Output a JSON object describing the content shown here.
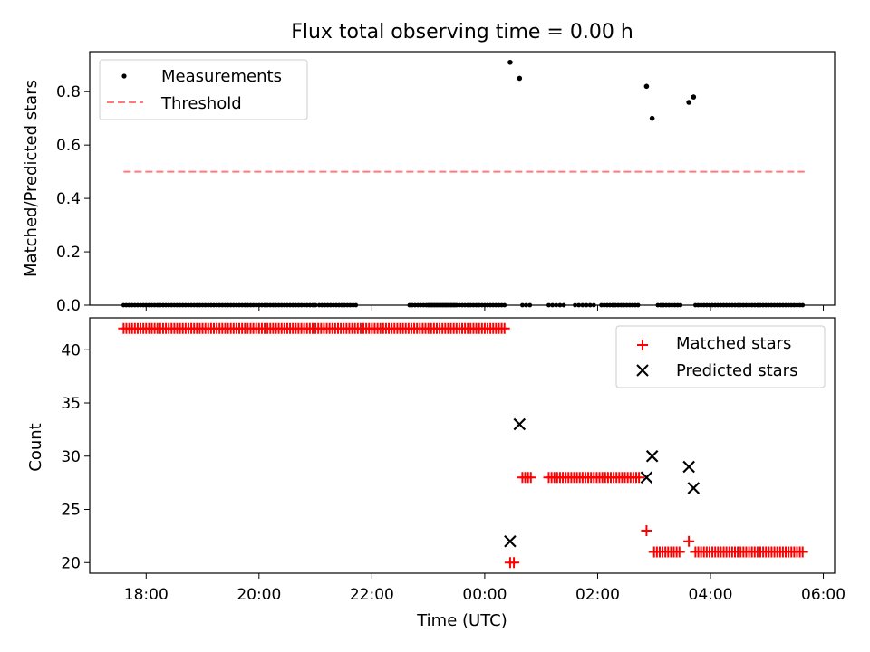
{
  "chart_data": [
    {
      "type": "scatter",
      "title": "Flux total observing time = 0.00 h",
      "ylabel": "Matched/Predicted stars",
      "xlim": [
        "17:00",
        "06:12"
      ],
      "ylim": [
        0,
        0.95
      ],
      "yticks": [
        "0.0",
        "0.2",
        "0.4",
        "0.6",
        "0.8"
      ],
      "grid": false,
      "legend_placement": "upper-left",
      "threshold": {
        "value": 0.5,
        "x_start": "17:36",
        "x_end": "05:40",
        "color": "#ff7a7a"
      },
      "legend": [
        {
          "label": "Measurements",
          "marker": "dot",
          "color": "#000000"
        },
        {
          "label": "Threshold",
          "marker": "dashed-line",
          "color": "#ff7a7a"
        }
      ],
      "series": [
        {
          "name": "Measurements",
          "color": "#000000",
          "zero_segments": [
            {
              "start": "17:36",
              "end": "21:00",
              "step_min": 3
            },
            {
              "start": "21:04",
              "end": "21:44",
              "step_min": 3
            },
            {
              "start": "22:40",
              "end": "23:30",
              "step_min": 3
            },
            {
              "start": "23:00",
              "end": "00:22",
              "step_min": 3
            },
            {
              "start": "00:40",
              "end": "00:50",
              "step_min": 4
            },
            {
              "start": "01:08",
              "end": "01:24",
              "step_min": 4
            },
            {
              "start": "01:36",
              "end": "01:56",
              "step_min": 4
            },
            {
              "start": "02:04",
              "end": "02:44",
              "step_min": 3
            },
            {
              "start": "03:04",
              "end": "03:28",
              "step_min": 3
            },
            {
              "start": "03:44",
              "end": "05:40",
              "step_min": 3
            }
          ],
          "points": [
            {
              "x": "00:27",
              "y": 0.91
            },
            {
              "x": "00:37",
              "y": 0.85
            },
            {
              "x": "02:52",
              "y": 0.82
            },
            {
              "x": "02:58",
              "y": 0.7
            },
            {
              "x": "03:37",
              "y": 0.76
            },
            {
              "x": "03:42",
              "y": 0.78
            }
          ]
        }
      ]
    },
    {
      "type": "scatter",
      "xlabel": "Time (UTC)",
      "ylabel": "Count",
      "xlim": [
        "17:00",
        "06:12"
      ],
      "ylim": [
        19,
        43
      ],
      "xticks": [
        "18:00",
        "20:00",
        "22:00",
        "00:00",
        "02:00",
        "04:00",
        "06:00"
      ],
      "yticks": [
        "20",
        "25",
        "30",
        "35",
        "40"
      ],
      "grid": false,
      "legend_placement": "upper-right",
      "legend": [
        {
          "label": "Matched stars",
          "marker": "plus",
          "color": "#ff0000"
        },
        {
          "label": "Predicted stars",
          "marker": "x",
          "color": "#000000"
        }
      ],
      "series": [
        {
          "name": "Matched stars",
          "marker": "plus",
          "color": "#ff0000",
          "segments": [
            {
              "start": "17:36",
              "end": "00:22",
              "step_min": 3,
              "y": 42
            },
            {
              "start": "00:40",
              "end": "00:50",
              "step_min": 3,
              "y": 28
            },
            {
              "start": "01:08",
              "end": "02:44",
              "step_min": 3,
              "y": 28
            },
            {
              "start": "03:00",
              "end": "03:28",
              "step_min": 3,
              "y": 21
            },
            {
              "start": "03:44",
              "end": "05:40",
              "step_min": 3,
              "y": 21
            }
          ],
          "points": [
            {
              "x": "00:27",
              "y": 20
            },
            {
              "x": "00:31",
              "y": 20
            },
            {
              "x": "02:52",
              "y": 23
            },
            {
              "x": "03:37",
              "y": 22
            }
          ]
        },
        {
          "name": "Predicted stars",
          "marker": "x",
          "color": "#000000",
          "points": [
            {
              "x": "00:27",
              "y": 22
            },
            {
              "x": "00:37",
              "y": 33
            },
            {
              "x": "02:52",
              "y": 28
            },
            {
              "x": "02:58",
              "y": 30
            },
            {
              "x": "03:37",
              "y": 29
            },
            {
              "x": "03:42",
              "y": 27
            }
          ]
        }
      ]
    }
  ]
}
